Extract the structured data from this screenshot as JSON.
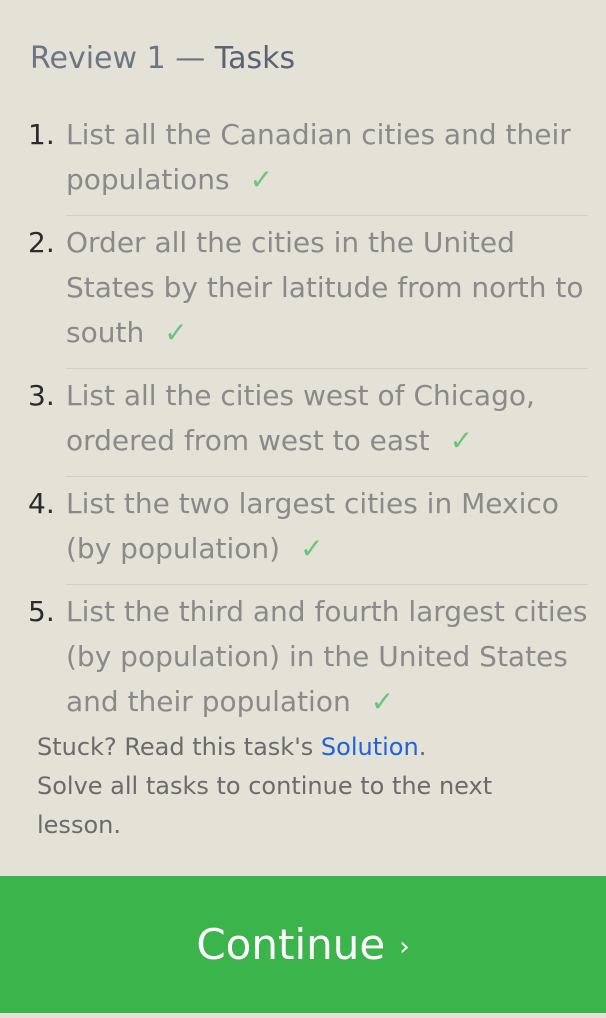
{
  "header": {
    "review": "Review 1",
    "separator": "—",
    "tasks_label": "Tasks"
  },
  "tasks": [
    {
      "number": "1.",
      "text": "List all the Canadian cities and their populations",
      "check": "✓"
    },
    {
      "number": "2.",
      "text": "Order all the cities in the United States by their latitude from north to south",
      "check": "✓"
    },
    {
      "number": "3.",
      "text": "List all the cities west of Chicago, ordered from west to east",
      "check": "✓"
    },
    {
      "number": "4.",
      "text": "List the two largest cities in Mexico (by population)",
      "check": "✓"
    },
    {
      "number": "5.",
      "text": "List the third and fourth largest cities (by population) in the United States and their population",
      "check": "✓"
    }
  ],
  "help": {
    "prefix": "Stuck? Read this task's ",
    "link": "Solution",
    "suffix": ".",
    "note": "Solve all tasks to continue to the next lesson."
  },
  "continue_button": {
    "label": "Continue",
    "arrow": "›"
  },
  "colors": {
    "background": "#e4e2d7",
    "accent_green": "#3ab44b",
    "check_green": "#6cc37b",
    "link_blue": "#1f63d9"
  }
}
